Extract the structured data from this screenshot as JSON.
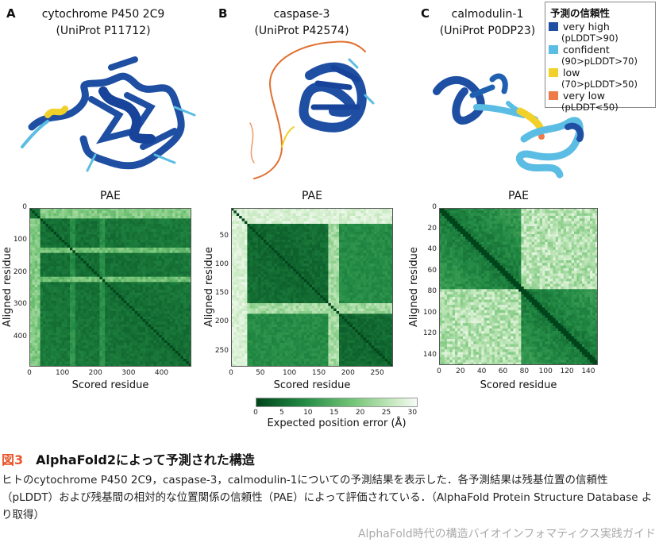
{
  "panels": [
    {
      "letter": "A",
      "title1": "cytochrome P450 2C9",
      "title2": "(UniProt P11712)"
    },
    {
      "letter": "B",
      "title1": "caspase-3",
      "title2": "(UniProt P42574)"
    },
    {
      "letter": "C",
      "title1": "calmodulin-1",
      "title2": "(UniProt P0DP23)"
    }
  ],
  "legend": {
    "title": "予測の信頼性",
    "items": [
      {
        "label": "very high",
        "range": "(pLDDT>90)",
        "color": "#1f4fa3"
      },
      {
        "label": "confident",
        "range": "(90>pLDDT>70)",
        "color": "#5bbde3"
      },
      {
        "label": "low",
        "range": "(70>pLDDT>50)",
        "color": "#f1d02a"
      },
      {
        "label": "very low",
        "range": "(pLDDT<50)",
        "color": "#ee7a4a"
      }
    ]
  },
  "chart_data": [
    {
      "type": "heatmap",
      "title": "PAE",
      "xlabel": "Scored residue",
      "ylabel": "Aligned residue",
      "n_residues": 490,
      "xticks": [
        "0",
        "100",
        "200",
        "300",
        "400"
      ],
      "yticks": [
        "0",
        "100",
        "200",
        "300",
        "400"
      ],
      "low_confidence_regions": [
        [
          0,
          30
        ],
        [
          125,
          135
        ],
        [
          215,
          225
        ]
      ]
    },
    {
      "type": "heatmap",
      "title": "PAE",
      "xlabel": "Scored residue",
      "ylabel": "Aligned residue",
      "n_residues": 277,
      "xticks": [
        "0",
        "50",
        "100",
        "150",
        "200",
        "250"
      ],
      "yticks": [
        "50",
        "100",
        "150",
        "200",
        "250"
      ],
      "low_confidence_regions": [
        [
          0,
          30
        ],
        [
          165,
          185
        ]
      ]
    },
    {
      "type": "heatmap",
      "title": "PAE",
      "xlabel": "Scored residue",
      "ylabel": "Aligned residue",
      "n_residues": 149,
      "xticks": [
        "0",
        "20",
        "40",
        "60",
        "80",
        "100",
        "120",
        "140"
      ],
      "yticks": [
        "0",
        "20",
        "40",
        "60",
        "80",
        "100",
        "120",
        "140"
      ],
      "domains": [
        [
          0,
          80
        ],
        [
          80,
          149
        ]
      ]
    }
  ],
  "colorbar": {
    "label": "Expected position error (Å)",
    "ticks": [
      "0",
      "5",
      "10",
      "15",
      "20",
      "25",
      "30"
    ],
    "range": [
      0,
      31
    ]
  },
  "caption": {
    "number": "図3",
    "title": "AlphaFold2によって予測された構造",
    "text": "ヒトのcytochrome P450 2C9，caspase-3，calmodulin-1についての予測結果を表示した．各予測結果は残基位置の信頼性（pLDDT）および残基間の相対的な位置関係の信頼性（PAE）によって評価されている．（AlphaFold Protein Structure Database より取得）"
  },
  "footer": "AlphaFold時代の構造バイオインフォマティクス実践ガイド"
}
